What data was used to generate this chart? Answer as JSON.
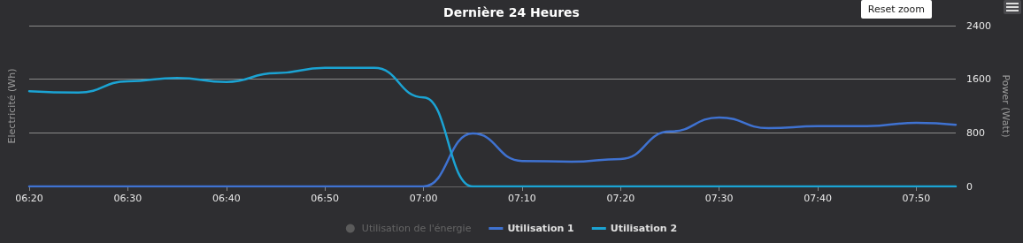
{
  "chart_data": {
    "type": "line",
    "title": "Dernière 24 Heures",
    "ylabel": "Electricité (Wh)",
    "y2label": "Power (Watt)",
    "annotations": [
      "Reset zoom"
    ],
    "x": [
      6.3333,
      6.4167,
      6.5,
      6.5833,
      6.6667,
      6.75,
      6.8333,
      6.9167,
      7.0,
      7.0833,
      7.1667,
      7.25,
      7.3333,
      7.4167,
      7.5,
      7.5833,
      7.6667,
      7.75,
      7.8333,
      7.9
    ],
    "xlim": [
      6.3333,
      7.9
    ],
    "xticks": [
      {
        "value": 6.3333,
        "label": "06:20"
      },
      {
        "value": 6.5,
        "label": "06:30"
      },
      {
        "value": 6.6667,
        "label": "06:40"
      },
      {
        "value": 6.8333,
        "label": "06:50"
      },
      {
        "value": 7.0,
        "label": "07:00"
      },
      {
        "value": 7.1667,
        "label": "07:10"
      },
      {
        "value": 7.3333,
        "label": "07:20"
      },
      {
        "value": 7.5,
        "label": "07:30"
      },
      {
        "value": 7.6667,
        "label": "07:40"
      },
      {
        "value": 7.8333,
        "label": "07:50"
      }
    ],
    "y2lim": [
      0,
      2400
    ],
    "y2ticks": [
      0,
      800,
      1600,
      2400
    ],
    "series": [
      {
        "name": "Utilisation de l'énergie",
        "type": "scatter",
        "color": "#666666",
        "axis": "y2",
        "values": [
          null,
          null,
          null,
          null,
          null,
          null,
          null,
          null,
          null,
          null,
          null,
          null,
          null,
          null,
          null,
          null,
          null,
          null,
          null,
          null
        ]
      },
      {
        "name": "Utilisation 1",
        "color": "#3f72d1",
        "axis": "y2",
        "values": [
          0,
          0,
          0,
          0,
          0,
          0,
          0,
          0,
          0,
          790,
          380,
          370,
          410,
          820,
          1030,
          870,
          900,
          900,
          950,
          920
        ]
      },
      {
        "name": "Utilisation 2",
        "color": "#1ba3d3",
        "axis": "y2",
        "values": [
          1420,
          1400,
          1570,
          1620,
          1560,
          1690,
          1770,
          1770,
          1330,
          0,
          0,
          0,
          0,
          0,
          0,
          0,
          0,
          0,
          0,
          0
        ]
      }
    ],
    "grid": "y",
    "legend": "bottom",
    "marker": "none"
  }
}
